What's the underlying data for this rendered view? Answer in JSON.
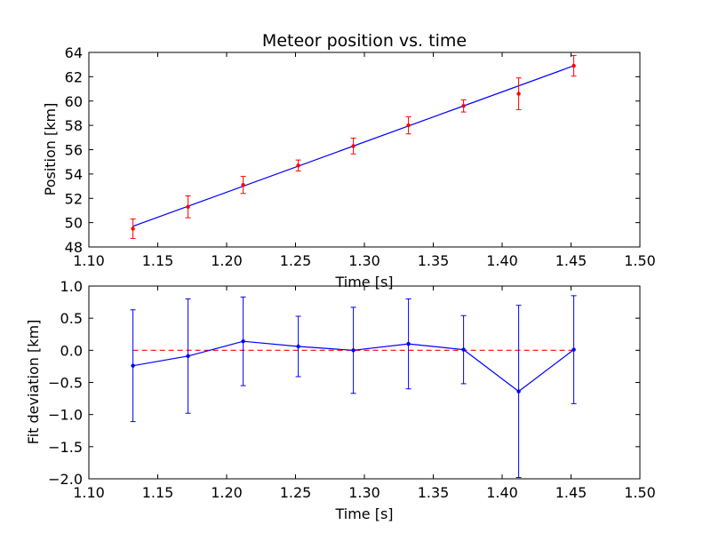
{
  "chart_data": [
    {
      "type": "scatter",
      "title": "Meteor position vs. time",
      "xlabel": "Time [s]",
      "ylabel": "Position [km]",
      "xlim": [
        1.1,
        1.5
      ],
      "ylim": [
        48,
        64
      ],
      "xticks": [
        "1.10",
        "1.15",
        "1.20",
        "1.25",
        "1.30",
        "1.35",
        "1.40",
        "1.45",
        "1.50"
      ],
      "yticks": [
        "48",
        "50",
        "52",
        "54",
        "56",
        "58",
        "60",
        "62",
        "64"
      ],
      "grid": false,
      "colors": {
        "points": "#ff0000",
        "errorbars": "#ff0000",
        "fit": "#0000ff"
      },
      "series": [
        {
          "kind": "points-with-errorbars",
          "x": [
            1.132,
            1.172,
            1.212,
            1.252,
            1.292,
            1.332,
            1.372,
            1.412,
            1.452
          ],
          "y": [
            49.5,
            51.3,
            53.1,
            54.7,
            56.3,
            58.0,
            59.6,
            60.6,
            62.9
          ],
          "yerr": [
            0.8,
            0.9,
            0.7,
            0.45,
            0.65,
            0.7,
            0.5,
            1.3,
            0.85
          ]
        },
        {
          "kind": "fit-line",
          "x": [
            1.132,
            1.452
          ],
          "y": [
            49.7,
            62.9
          ]
        }
      ]
    },
    {
      "type": "line",
      "title": "",
      "xlabel": "Time [s]",
      "ylabel": "Fit deviation [km]",
      "xlim": [
        1.1,
        1.5
      ],
      "ylim": [
        -2.0,
        1.0
      ],
      "xticks": [
        "1.10",
        "1.15",
        "1.20",
        "1.25",
        "1.30",
        "1.35",
        "1.40",
        "1.45",
        "1.50"
      ],
      "yticks": [
        "−2.0",
        "−1.5",
        "−1.0",
        "−0.5",
        "0.0",
        "0.5",
        "1.0"
      ],
      "grid": false,
      "colors": {
        "line": "#0000ff",
        "errorbars": "#0000ff",
        "zero_line": "#ff0000"
      },
      "zero_line": 0.0,
      "series": [
        {
          "kind": "line-with-errorbars",
          "x": [
            1.132,
            1.172,
            1.212,
            1.252,
            1.292,
            1.332,
            1.372,
            1.412,
            1.452
          ],
          "y": [
            -0.24,
            -0.09,
            0.14,
            0.06,
            0.0,
            0.1,
            0.01,
            -0.64,
            0.01
          ],
          "yerr": [
            0.87,
            0.89,
            0.69,
            0.47,
            0.67,
            0.7,
            0.53,
            1.34,
            0.84
          ]
        }
      ]
    }
  ]
}
